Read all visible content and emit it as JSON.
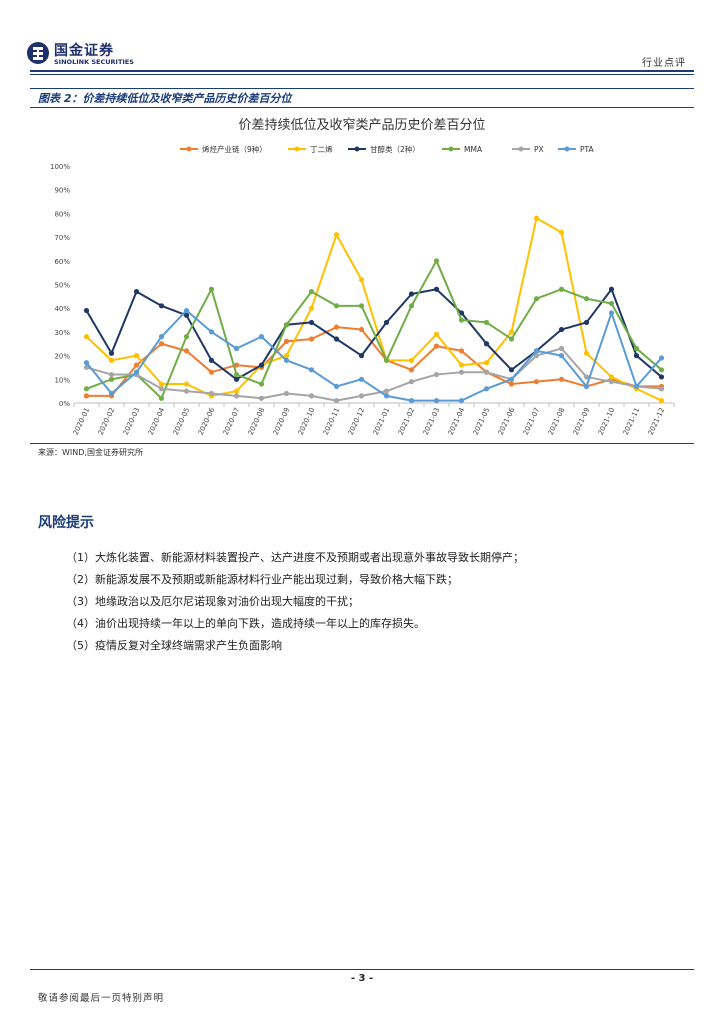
{
  "header": {
    "logo_cn": "国金证券",
    "logo_en": "SINOLINK SECURITIES",
    "section": "行业点评"
  },
  "figure": {
    "caption": "图表 2：价差持续低位及收窄类产品历史价差百分位",
    "source": "来源：WIND,国金证券研究所"
  },
  "chart_data": {
    "type": "line",
    "title": "价差持续低位及收窄类产品历史价差百分位",
    "legend_position": "top",
    "grid": false,
    "ylim": [
      0,
      100
    ],
    "y_ticks": [
      "0%",
      "10%",
      "20%",
      "30%",
      "40%",
      "50%",
      "60%",
      "70%",
      "80%",
      "90%",
      "100%"
    ],
    "categories": [
      "2020-01",
      "2020-02",
      "2020-03",
      "2020-04",
      "2020-05",
      "2020-06",
      "2020-07",
      "2020-08",
      "2020-09",
      "2020-10",
      "2020-11",
      "2020-12",
      "2021-01",
      "2021-02",
      "2021-03",
      "2021-04",
      "2021-05",
      "2021-06",
      "2021-07",
      "2021-08",
      "2021-09",
      "2021-10",
      "2021-11",
      "2021-12"
    ],
    "series": [
      {
        "name": "烯烃产业链（9种）",
        "color": "#ed7d31",
        "values": [
          3,
          3,
          16,
          25,
          22,
          13,
          16,
          15,
          26,
          27,
          32,
          31,
          18,
          14,
          24,
          22,
          13,
          8,
          9,
          10,
          7,
          10,
          7,
          7
        ]
      },
      {
        "name": "丁二烯",
        "color": "#ffc000",
        "values": [
          28,
          18,
          20,
          8,
          8,
          3,
          5,
          16,
          20,
          40,
          71,
          52,
          18,
          18,
          29,
          16,
          17,
          30,
          78,
          72,
          21,
          11,
          6,
          1
        ]
      },
      {
        "name": "甘醇类（2种）",
        "color": "#1f3864",
        "values": [
          39,
          21,
          47,
          41,
          37,
          18,
          10,
          16,
          33,
          34,
          27,
          20,
          34,
          46,
          48,
          38,
          25,
          14,
          22,
          31,
          34,
          48,
          20,
          11
        ]
      },
      {
        "name": "MMA",
        "color": "#70ad47",
        "values": [
          6,
          10,
          12,
          2,
          28,
          48,
          12,
          8,
          33,
          47,
          41,
          41,
          18,
          41,
          60,
          35,
          34,
          27,
          44,
          48,
          44,
          42,
          23,
          14
        ]
      },
      {
        "name": "PX",
        "color": "#a5a5a5",
        "values": [
          15,
          12,
          12,
          6,
          5,
          4,
          3,
          2,
          4,
          3,
          1,
          3,
          5,
          9,
          12,
          13,
          13,
          10,
          20,
          23,
          11,
          9,
          7,
          6
        ]
      },
      {
        "name": "PTA",
        "color": "#5b9bd5",
        "values": [
          17,
          4,
          13,
          28,
          39,
          30,
          23,
          28,
          18,
          14,
          7,
          10,
          3,
          1,
          1,
          1,
          6,
          10,
          22,
          20,
          7,
          38,
          7,
          19
        ]
      }
    ]
  },
  "risk": {
    "title": "风险提示",
    "items": [
      "（1）大炼化装置、新能源材料装置投产、达产进度不及预期或者出现意外事故导致长期停产；",
      "（2）新能源发展不及预期或新能源材料行业产能出现过剩，导致价格大幅下跌；",
      "（3）地缘政治以及厄尔尼诺现象对油价出现大幅度的干扰；",
      "（4）油价出现持续一年以上的单向下跌，造成持续一年以上的库存损失。",
      "（5）疫情反复对全球终端需求产生负面影响"
    ]
  },
  "footer": {
    "page": "- 3 -",
    "note": "敬请参阅最后一页特别声明"
  }
}
